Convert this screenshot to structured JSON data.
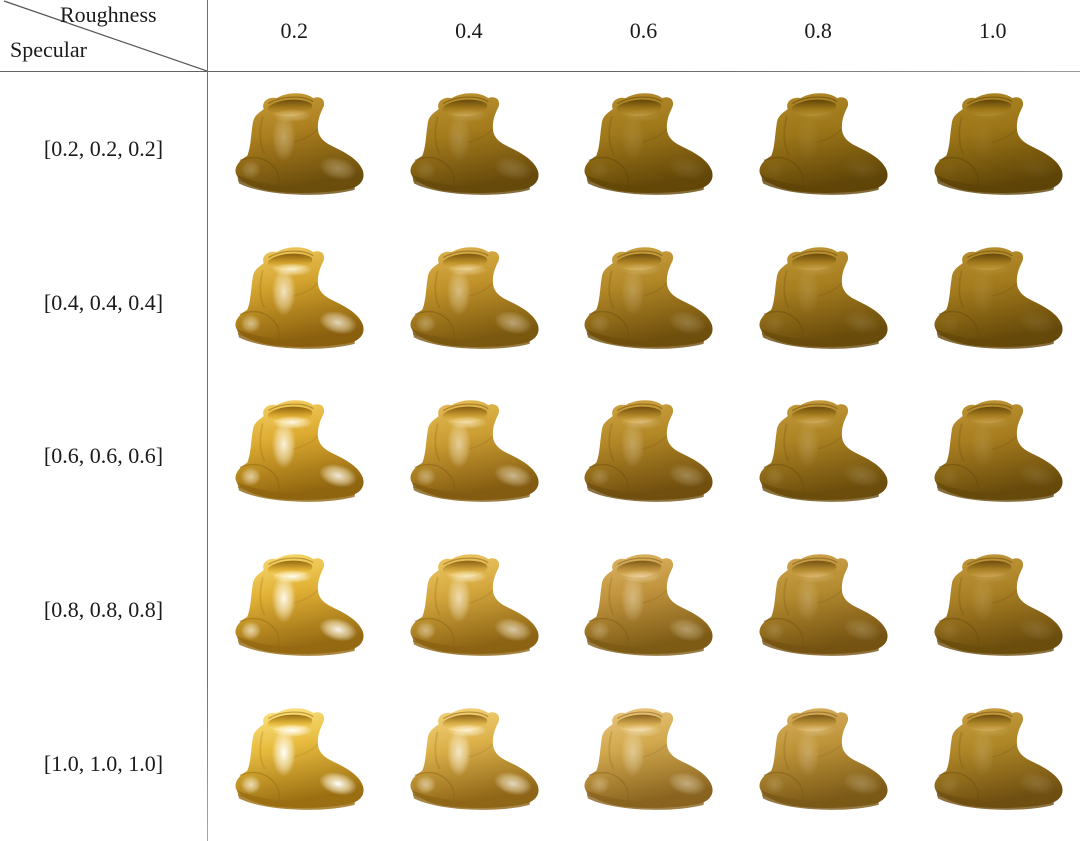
{
  "figure": {
    "col_axis_label": "Roughness",
    "row_axis_label": "Specular",
    "columns": [
      "0.2",
      "0.4",
      "0.6",
      "0.8",
      "1.0"
    ],
    "rows": [
      "[0.2, 0.2, 0.2]",
      "[0.4, 0.4, 0.4]",
      "[0.6, 0.6, 0.6]",
      "[0.8, 0.8, 0.8]",
      "[1.0, 1.0, 1.0]"
    ],
    "cell_object": "rendered gold boot"
  },
  "chart_data": {
    "type": "table",
    "title": "",
    "col_variable": "Roughness",
    "col_values": [
      0.2,
      0.4,
      0.6,
      0.8,
      1.0
    ],
    "row_variable": "Specular",
    "row_values": [
      [
        0.2,
        0.2,
        0.2
      ],
      [
        0.4,
        0.4,
        0.4
      ],
      [
        0.6,
        0.6,
        0.6
      ],
      [
        0.8,
        0.8,
        0.8
      ],
      [
        1.0,
        1.0,
        1.0
      ]
    ],
    "cell_content": "3D boot rendered with a gold material at the given specular (row) and roughness (column) values"
  },
  "style": {
    "background": "#ffffff",
    "line_color": "#626262",
    "text_color": "#1a1a1a",
    "highlight_tint": "#fff6d8",
    "cells": [
      [
        {
          "base": "#ac7f1f",
          "lite": "#c89e3a",
          "dark": "#6b4d0c",
          "hi": 0.3
        },
        {
          "base": "#a57c1d",
          "lite": "#bf9634",
          "dark": "#674a0b",
          "hi": 0.16
        },
        {
          "base": "#9f781a",
          "lite": "#b78e2e",
          "dark": "#634708",
          "hi": 0.09
        },
        {
          "base": "#9c7618",
          "lite": "#b28a2a",
          "dark": "#604508",
          "hi": 0.06
        },
        {
          "base": "#9a7416",
          "lite": "#af8828",
          "dark": "#5e4407",
          "hi": 0.04
        }
      ],
      [
        {
          "base": "#d2a22c",
          "lite": "#f2ce66",
          "dark": "#8a5f0e",
          "hi": 0.72
        },
        {
          "base": "#c0922a",
          "lite": "#e0b652",
          "dark": "#7b580f",
          "hi": 0.42
        },
        {
          "base": "#b08626",
          "lite": "#cfa646",
          "dark": "#6f4f0d",
          "hi": 0.2
        },
        {
          "base": "#a87f20",
          "lite": "#c2993a",
          "dark": "#694b0b",
          "hi": 0.11
        },
        {
          "base": "#a37a1c",
          "lite": "#bb9232",
          "dark": "#65490a",
          "hi": 0.07
        }
      ],
      [
        {
          "base": "#dcaa30",
          "lite": "#f8d56a",
          "dark": "#90650f",
          "hi": 0.85
        },
        {
          "base": "#cb9d32",
          "lite": "#eac05c",
          "dark": "#835b11",
          "hi": 0.52
        },
        {
          "base": "#b28726",
          "lite": "#d3a848",
          "dark": "#714f0f",
          "hi": 0.27
        },
        {
          "base": "#ac8323",
          "lite": "#c79d40",
          "dark": "#6c4d0c",
          "hi": 0.15
        },
        {
          "base": "#a77d1f",
          "lite": "#c09638",
          "dark": "#674a0b",
          "hi": 0.09
        }
      ],
      [
        {
          "base": "#e1b135",
          "lite": "#fbdf78",
          "dark": "#956912",
          "hi": 0.92
        },
        {
          "base": "#d4a73d",
          "lite": "#f1cc6a",
          "dark": "#8c6313",
          "hi": 0.62
        },
        {
          "base": "#c1943e",
          "lite": "#e1b968",
          "dark": "#7d5b15",
          "hi": 0.36
        },
        {
          "base": "#b48b2f",
          "lite": "#d3a752",
          "dark": "#755312",
          "hi": 0.19
        },
        {
          "base": "#ab8125",
          "lite": "#c69b40",
          "dark": "#6b4d0d",
          "hi": 0.11
        }
      ],
      [
        {
          "base": "#e7bb3d",
          "lite": "#ffeb90",
          "dark": "#9a6e11",
          "hi": 1.0
        },
        {
          "base": "#dbb049",
          "lite": "#f8d980",
          "dark": "#8f6517",
          "hi": 0.72
        },
        {
          "base": "#d1a84d",
          "lite": "#efcb84",
          "dark": "#89631f",
          "hi": 0.42
        },
        {
          "base": "#be9439",
          "lite": "#dcb162",
          "dark": "#7b5917",
          "hi": 0.22
        },
        {
          "base": "#af8727",
          "lite": "#cba144",
          "dark": "#6f4f11",
          "hi": 0.13
        }
      ]
    ]
  }
}
